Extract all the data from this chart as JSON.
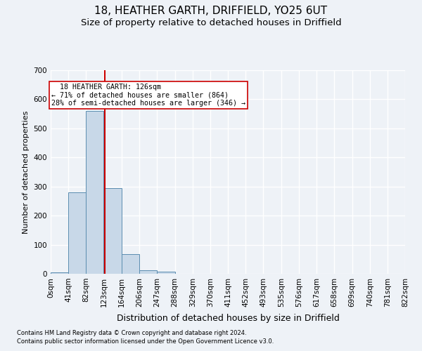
{
  "title1": "18, HEATHER GARTH, DRIFFIELD, YO25 6UT",
  "title2": "Size of property relative to detached houses in Driffield",
  "xlabel": "Distribution of detached houses by size in Driffield",
  "ylabel": "Number of detached properties",
  "footnote1": "Contains HM Land Registry data © Crown copyright and database right 2024.",
  "footnote2": "Contains public sector information licensed under the Open Government Licence v3.0.",
  "bin_edges": [
    0,
    41,
    82,
    123,
    164,
    206,
    247,
    288,
    329,
    370,
    411,
    452,
    493,
    535,
    576,
    617,
    658,
    699,
    740,
    781,
    822
  ],
  "bar_heights": [
    5,
    280,
    560,
    295,
    68,
    13,
    8,
    0,
    0,
    0,
    0,
    0,
    0,
    0,
    0,
    0,
    0,
    0,
    0,
    0
  ],
  "bar_color": "#c8d8e8",
  "bar_edge_color": "#5b8db0",
  "property_size": 126,
  "vline_color": "#cc0000",
  "annotation_text": "  18 HEATHER GARTH: 126sqm\n← 71% of detached houses are smaller (864)\n28% of semi-detached houses are larger (346) →",
  "annotation_box_color": "#ffffff",
  "annotation_box_edge_color": "#cc0000",
  "ylim": [
    0,
    700
  ],
  "yticks": [
    0,
    100,
    200,
    300,
    400,
    500,
    600,
    700
  ],
  "background_color": "#eef2f7",
  "grid_color": "#ffffff",
  "title1_fontsize": 11,
  "title2_fontsize": 9.5,
  "xlabel_fontsize": 9,
  "ylabel_fontsize": 8,
  "tick_fontsize": 7.5,
  "footnote_fontsize": 6
}
